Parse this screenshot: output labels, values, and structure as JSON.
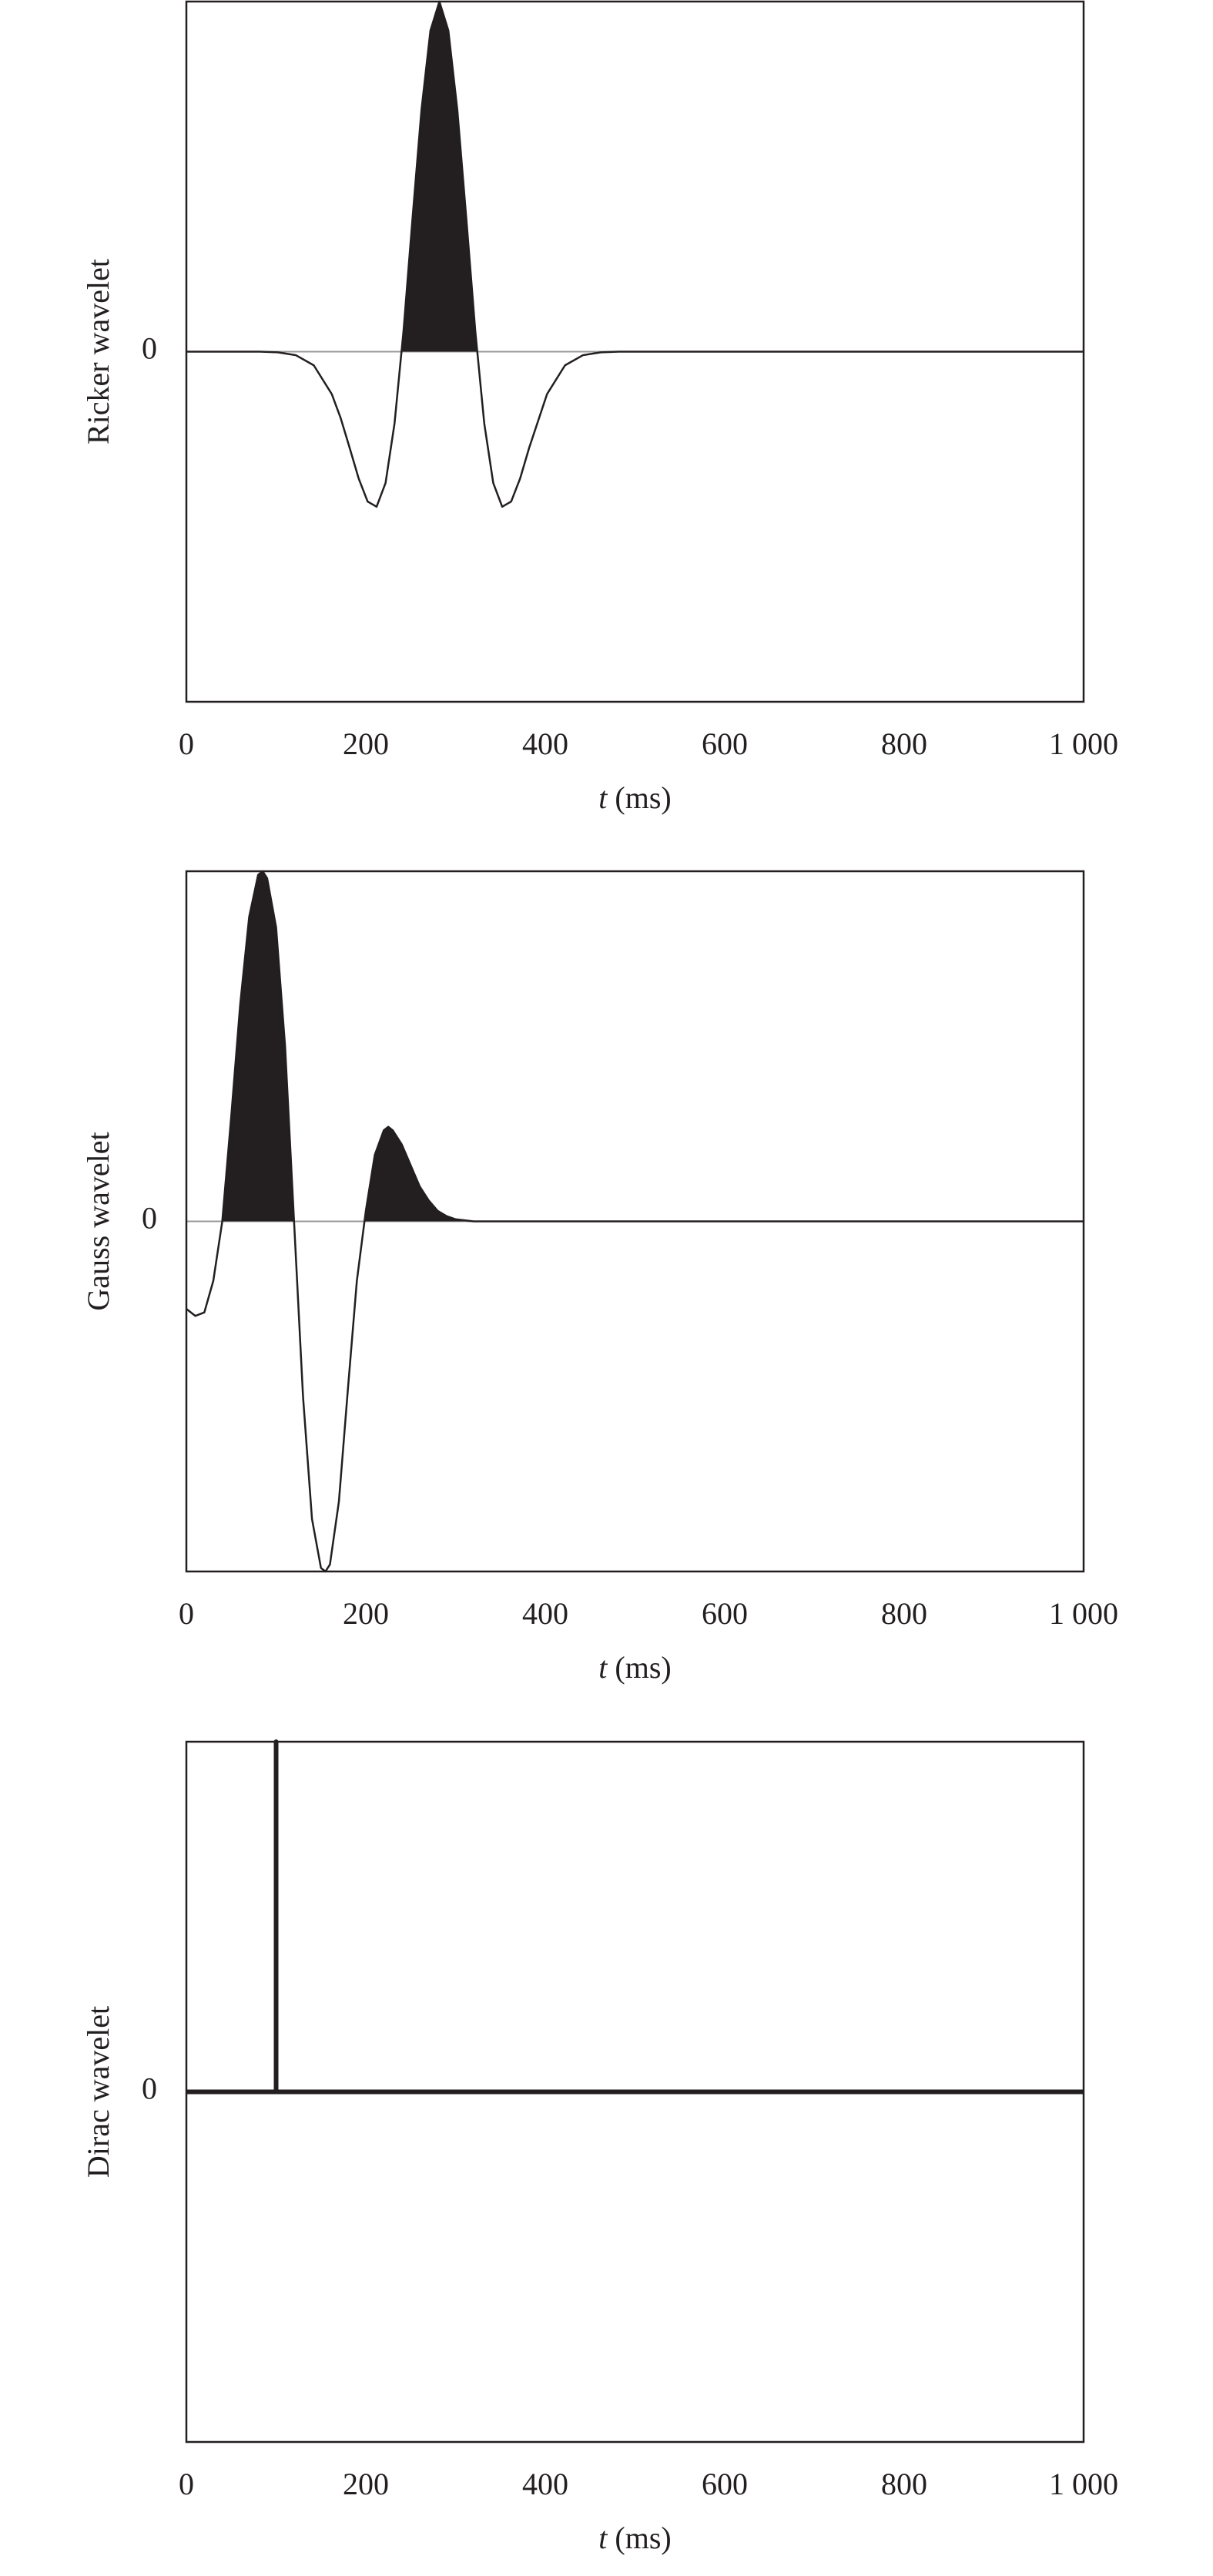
{
  "chart_data": [
    {
      "type": "line",
      "y_label": "Ricker wavelet",
      "x_label": {
        "var": "t",
        "unit": "(ms)"
      },
      "x": [
        0,
        82,
        102,
        122,
        142,
        162,
        172,
        182,
        192,
        202,
        212,
        222,
        232,
        242,
        252,
        262,
        272,
        282,
        292,
        302,
        312,
        322,
        332,
        342,
        352,
        362,
        372,
        382,
        402,
        422,
        442,
        462,
        482,
        1000
      ],
      "values": [
        0,
        0,
        -0.002,
        -0.01,
        -0.039,
        -0.121,
        -0.19,
        -0.275,
        -0.362,
        -0.428,
        -0.443,
        -0.375,
        -0.205,
        0.059,
        0.38,
        0.69,
        0.917,
        1,
        0.917,
        0.69,
        0.38,
        0.059,
        -0.205,
        -0.375,
        -0.443,
        -0.428,
        -0.362,
        -0.275,
        -0.121,
        -0.039,
        -0.01,
        -0.002,
        0,
        0
      ],
      "color": "#231f20",
      "fill_positive": true,
      "line_width": 2.5,
      "xlim": [
        0,
        1000
      ],
      "ylim": [
        -1,
        1
      ],
      "xticks": [
        0,
        200,
        400,
        600,
        800,
        {
          "value": 1000,
          "label": "1 000"
        }
      ],
      "yticks": [
        0
      ]
    },
    {
      "type": "line",
      "y_label": "Gauss wavelet",
      "x_label": {
        "var": "t",
        "unit": "(ms)"
      },
      "x": [
        0,
        10,
        20,
        30,
        40,
        50,
        60,
        70,
        80,
        85,
        90,
        100,
        110,
        120,
        130,
        140,
        150,
        155,
        160,
        170,
        180,
        190,
        200,
        210,
        220,
        225,
        230,
        240,
        250,
        260,
        270,
        280,
        290,
        300,
        320,
        1000
      ],
      "values": [
        -0.25,
        -0.27,
        -0.26,
        -0.17,
        0,
        0.3,
        0.62,
        0.87,
        0.99,
        1,
        0.98,
        0.84,
        0.5,
        0,
        -0.5,
        -0.85,
        -0.99,
        -1,
        -0.98,
        -0.8,
        -0.48,
        -0.17,
        0.03,
        0.19,
        0.26,
        0.27,
        0.26,
        0.22,
        0.16,
        0.1,
        0.06,
        0.03,
        0.015,
        0.006,
        0,
        0
      ],
      "color": "#231f20",
      "fill_positive": true,
      "line_width": 2.5,
      "xlim": [
        0,
        1000
      ],
      "ylim": [
        -1,
        1
      ],
      "xticks": [
        0,
        200,
        400,
        600,
        800,
        {
          "value": 1000,
          "label": "1 000"
        }
      ],
      "yticks": [
        0
      ]
    },
    {
      "type": "line",
      "y_label": "Dirac wavelet",
      "x_label": {
        "var": "t",
        "unit": "(ms)"
      },
      "x": [
        0,
        100,
        100,
        100,
        1000
      ],
      "values": [
        0,
        0,
        1,
        0,
        0
      ],
      "color": "#231f20",
      "fill_positive": true,
      "line_width": 6,
      "xlim": [
        0,
        1000
      ],
      "ylim": [
        -1,
        1
      ],
      "xticks": [
        0,
        200,
        400,
        600,
        800,
        {
          "value": 1000,
          "label": "1 000"
        }
      ],
      "yticks": [
        0
      ]
    }
  ]
}
